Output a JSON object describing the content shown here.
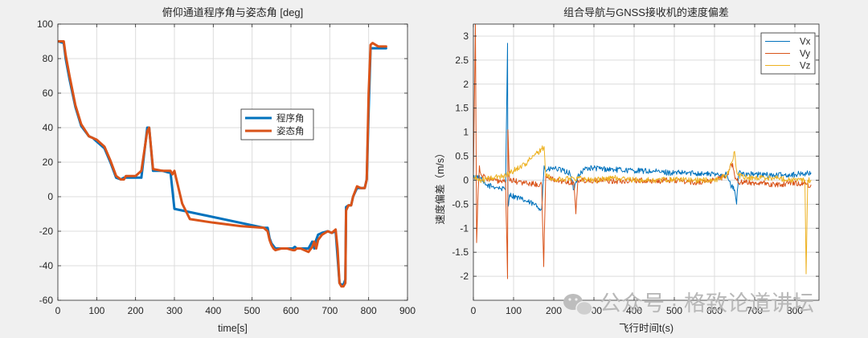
{
  "chart_data": [
    {
      "type": "line",
      "title": "俯仰通道程序角与姿态角  [deg]",
      "xlabel": "time[s]",
      "ylabel": "",
      "xlim": [
        0,
        900
      ],
      "ylim": [
        -60,
        100
      ],
      "xticks": [
        0,
        100,
        200,
        300,
        400,
        500,
        600,
        700,
        800,
        900
      ],
      "yticks": [
        -60,
        -40,
        -20,
        0,
        20,
        40,
        60,
        80,
        100
      ],
      "grid": true,
      "legend_position": "middle-right",
      "series": [
        {
          "name": "程序角",
          "color": "#0072bd",
          "x": [
            0,
            15,
            20,
            30,
            45,
            60,
            80,
            90,
            100,
            120,
            135,
            150,
            162,
            170,
            175,
            180,
            190,
            200,
            215,
            230,
            235,
            245,
            270,
            285,
            290,
            300,
            530,
            540,
            545,
            550,
            560,
            575,
            590,
            605,
            610,
            615,
            625,
            645,
            655,
            660,
            665,
            670,
            680,
            695,
            705,
            715,
            720,
            725,
            730,
            735,
            740,
            742,
            748,
            755,
            760,
            770,
            780,
            790,
            795,
            800,
            805,
            810,
            845
          ],
          "y": [
            90,
            89,
            80,
            68,
            52,
            41,
            35,
            34,
            32,
            28,
            20,
            11,
            10,
            11,
            11,
            11,
            11,
            11,
            11,
            40,
            40,
            15,
            15,
            14,
            14,
            -7,
            -18,
            -18,
            -24,
            -27,
            -30,
            -30,
            -30,
            -30,
            -29,
            -30,
            -30,
            -30,
            -26,
            -30,
            -25,
            -22,
            -21,
            -20,
            -21,
            -20,
            -35,
            -50,
            -51,
            -51,
            -48,
            -6,
            -5,
            -5,
            0,
            5,
            5,
            5,
            10,
            50,
            86,
            86,
            86
          ]
        },
        {
          "name": "姿态角",
          "color": "#d95319",
          "x": [
            0,
            15,
            20,
            30,
            45,
            60,
            80,
            90,
            100,
            120,
            135,
            150,
            162,
            170,
            175,
            180,
            190,
            200,
            215,
            230,
            235,
            245,
            270,
            290,
            295,
            300,
            320,
            340,
            400,
            470,
            530,
            540,
            545,
            550,
            555,
            560,
            575,
            590,
            605,
            610,
            615,
            625,
            645,
            655,
            660,
            665,
            670,
            680,
            695,
            705,
            715,
            720,
            725,
            730,
            735,
            740,
            742,
            748,
            755,
            760,
            770,
            780,
            790,
            795,
            800,
            805,
            810,
            825,
            845
          ],
          "y": [
            90,
            90,
            82,
            70,
            53,
            42,
            35,
            34,
            33,
            29,
            21,
            12,
            10,
            10,
            12,
            12,
            12,
            12,
            15,
            38,
            40,
            16,
            15,
            15,
            13,
            15,
            -4,
            -13,
            -15,
            -17,
            -18,
            -20,
            -25,
            -28,
            -30,
            -31,
            -30,
            -30,
            -31,
            -31,
            -30,
            -30,
            -32,
            -29,
            -26,
            -30,
            -25,
            -22,
            -20,
            -21,
            -19,
            -30,
            -50,
            -52,
            -52,
            -50,
            -8,
            -5,
            -5,
            0,
            6,
            5,
            5,
            10,
            60,
            88,
            89,
            87,
            87
          ]
        }
      ]
    },
    {
      "type": "line",
      "title": "组合导航与GNSS接收机的速度偏差",
      "xlabel": "飞行时间t(s)",
      "ylabel": "速度偏差（m/s）",
      "xlim": [
        0,
        860
      ],
      "ylim": [
        -2.5,
        3.25
      ],
      "xticks": [
        0,
        100,
        200,
        300,
        400,
        500,
        600,
        700,
        800
      ],
      "yticks": [
        -2,
        -1.5,
        -1,
        -0.5,
        0,
        0.5,
        1,
        1.5,
        2,
        2.5,
        3
      ],
      "grid": true,
      "legend_position": "top-right",
      "series": [
        {
          "name": "Vx",
          "color": "#0072bd",
          "x": [
            0,
            10,
            30,
            60,
            80,
            85,
            86,
            90,
            120,
            150,
            170,
            176,
            180,
            200,
            220,
            240,
            250,
            260,
            280,
            300,
            350,
            400,
            450,
            500,
            550,
            600,
            630,
            640,
            650,
            655,
            660,
            700,
            750,
            800,
            840
          ],
          "y": [
            0.05,
            0.1,
            -0.1,
            -0.15,
            -0.2,
            2.85,
            -0.55,
            -0.3,
            -0.4,
            -0.5,
            -0.6,
            0.3,
            0.2,
            0.25,
            0.2,
            0.15,
            -0.2,
            0.1,
            0.25,
            0.25,
            0.22,
            0.2,
            0.18,
            0.15,
            0.15,
            0.12,
            0.12,
            -0.1,
            -0.2,
            -0.5,
            0.15,
            0.12,
            0.1,
            0.12,
            0.15
          ]
        },
        {
          "name": "Vy",
          "color": "#d95319",
          "x": [
            0,
            5,
            8,
            12,
            15,
            20,
            30,
            50,
            80,
            85,
            86,
            90,
            120,
            170,
            175,
            180,
            190,
            200,
            250,
            255,
            260,
            300,
            350,
            400,
            450,
            500,
            550,
            600,
            630,
            645,
            650,
            660,
            700,
            750,
            800,
            840
          ],
          "y": [
            0.1,
            3.25,
            -1.3,
            -0.2,
            0.3,
            0.1,
            0.05,
            0.0,
            -0.05,
            -2.05,
            1.05,
            0.0,
            -0.05,
            -0.1,
            -1.8,
            0.1,
            0.05,
            0.0,
            -0.05,
            -0.7,
            0.0,
            0.0,
            -0.02,
            0.0,
            -0.02,
            0.0,
            -0.05,
            0.0,
            0.1,
            0.35,
            0.1,
            -0.05,
            -0.05,
            -0.1,
            -0.05,
            -0.1
          ]
        },
        {
          "name": "Vz",
          "color": "#edb120",
          "x": [
            0,
            20,
            50,
            80,
            100,
            130,
            150,
            170,
            176,
            180,
            200,
            250,
            300,
            350,
            400,
            450,
            500,
            550,
            600,
            630,
            645,
            650,
            655,
            660,
            680,
            700,
            750,
            800,
            825,
            828,
            832,
            840
          ],
          "y": [
            0.05,
            0.0,
            0.05,
            0.1,
            0.2,
            0.35,
            0.5,
            0.65,
            0.7,
            0.1,
            0.0,
            0.05,
            0.0,
            0.05,
            0.0,
            0.0,
            0.02,
            0.0,
            0.0,
            0.1,
            0.4,
            0.6,
            0.2,
            0.1,
            0.05,
            0.05,
            0.05,
            0.0,
            0.0,
            -1.95,
            0.0,
            0.0
          ]
        }
      ]
    }
  ],
  "watermark": {
    "text": "公众号 · 格致论道讲坛",
    "icon": "wechat-icon"
  }
}
